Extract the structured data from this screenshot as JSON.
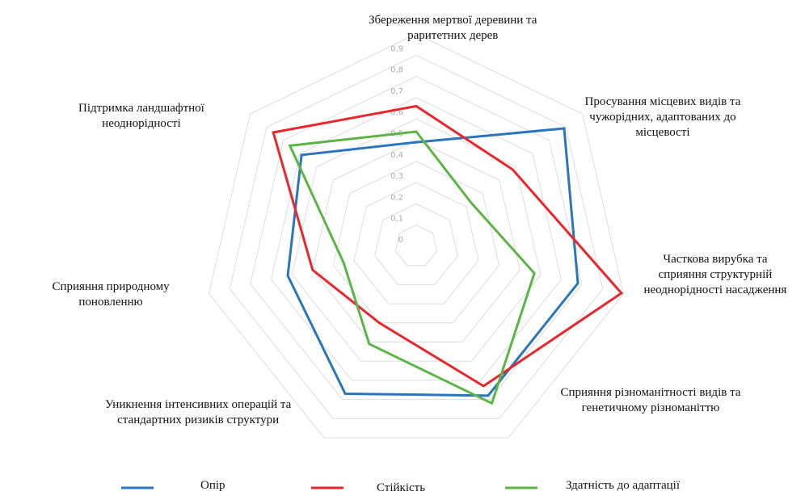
{
  "chart_data": {
    "type": "radar",
    "categories": [
      [
        "Збереження мертвої деревини та",
        "раритетних дерев"
      ],
      [
        "Просування місцевих видів та",
        "чужорідних, адаптованих до",
        "місцевості"
      ],
      [
        "Часткова вирубка та",
        "сприяння структурній",
        "неоднорідності насадження"
      ],
      [
        "Сприяння різноманітності видів та",
        "генетичному різноманіттю"
      ],
      [
        "Уникнення інтенсивних операцій та",
        "стандартних ризиків структури"
      ],
      [
        "Сприяння природному",
        "поновленню"
      ],
      [
        "Підтримка ландшафтної",
        "неоднорідності"
      ]
    ],
    "series": [
      {
        "name": "Опір",
        "color": "#2a75bb",
        "values": [
          0.49,
          0.89,
          0.78,
          0.78,
          0.77,
          0.62,
          0.69
        ]
      },
      {
        "name": "Стійкість",
        "color": "#e8262b",
        "values": [
          0.66,
          0.58,
          0.99,
          0.73,
          0.4,
          0.5,
          0.86
        ]
      },
      {
        "name": "Здатність до адаптації",
        "color": "#5bb443",
        "values": [
          0.54,
          0.33,
          0.57,
          0.82,
          0.51,
          0.35,
          0.76
        ]
      }
    ],
    "rlim": [
      0,
      1
    ],
    "rticks": [
      0,
      {
        "value": 0.1,
        "label": "0,1"
      },
      {
        "value": 0.2,
        "label": "0,2"
      },
      {
        "value": 0.3,
        "label": "0,3"
      },
      {
        "value": 0.4,
        "label": "0,4"
      },
      {
        "value": 0.5,
        "label": "0,5"
      },
      {
        "value": 0.6,
        "label": "0,6"
      },
      {
        "value": 0.7,
        "label": "0,7"
      },
      {
        "value": 0.8,
        "label": "0,8"
      },
      {
        "value": 0.9,
        "label": "0,9"
      }
    ],
    "grid": true,
    "legend": "bottom"
  }
}
